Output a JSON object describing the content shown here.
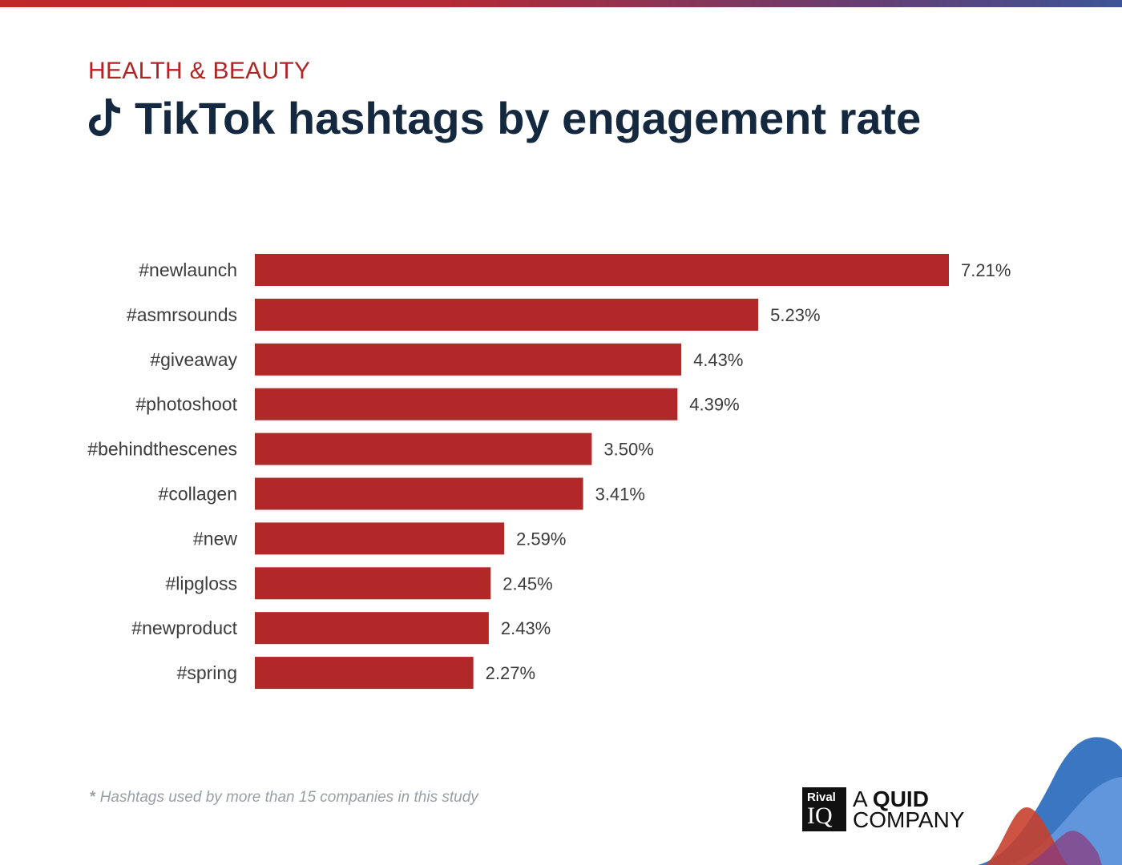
{
  "header": {
    "eyebrow": "HEALTH & BEAUTY",
    "title": "TikTok hashtags by engagement rate",
    "icon": "tiktok-icon"
  },
  "colors": {
    "bar": "#b22828",
    "eyebrow": "#b02424",
    "title": "#14293f",
    "labels": "#3c3c3c"
  },
  "chart_data": {
    "type": "bar",
    "orientation": "horizontal",
    "title": "TikTok hashtags by engagement rate",
    "categories": [
      "#newlaunch",
      "#asmrsounds",
      "#giveaway",
      "#photoshoot",
      "#behindthescenes",
      "#collagen",
      "#new",
      "#lipgloss",
      "#newproduct",
      "#spring"
    ],
    "values": [
      7.21,
      5.23,
      4.43,
      4.39,
      3.5,
      3.41,
      2.59,
      2.45,
      2.43,
      2.27
    ],
    "value_labels": [
      "7.21%",
      "5.23%",
      "4.43%",
      "4.39%",
      "3.50%",
      "3.41%",
      "2.59%",
      "2.45%",
      "2.43%",
      "2.27%"
    ],
    "xlim": [
      0,
      7.21
    ],
    "xlabel": "",
    "ylabel": "",
    "grid": false,
    "legend": "none"
  },
  "footnote": {
    "star": "*",
    "text": "Hashtags used by more than 15 companies in this study"
  },
  "brand": {
    "box_top": "Rival",
    "box_bottom": "IQ",
    "line1_a": "A",
    "line1_b": "QUID",
    "line2": "COMPANY"
  }
}
